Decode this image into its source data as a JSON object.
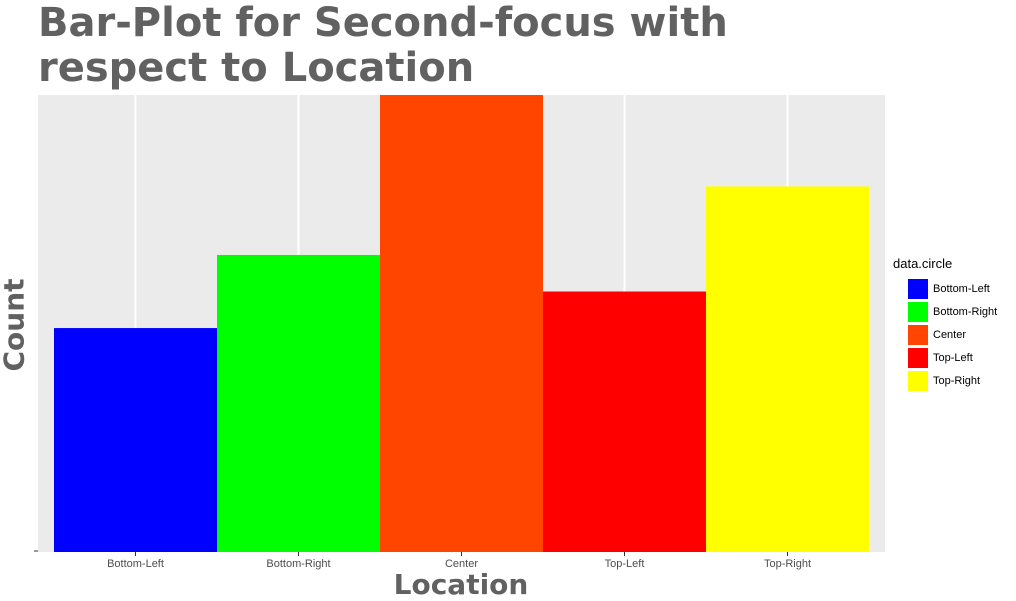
{
  "chart_data": {
    "type": "bar",
    "title": "Bar-Plot for Second-focus with respect to Location",
    "title_lines": [
      "Bar-Plot for Second-focus with",
      "respect to Location"
    ],
    "xlabel": "Location",
    "ylabel": "Count",
    "categories": [
      "Bottom-Left",
      "Bottom-Right",
      "Center",
      "Top-Left",
      "Top-Right"
    ],
    "values": [
      0.49,
      0.65,
      1.0,
      0.57,
      0.8
    ],
    "colors": [
      "#0000ff",
      "#00ff00",
      "#ff4500",
      "#ff0000",
      "#ffff00"
    ],
    "ylim": [
      0,
      1
    ],
    "grid": true,
    "legend": {
      "title": "data.circle",
      "placement": "right",
      "entries": [
        "Bottom-Left",
        "Bottom-Right",
        "Center",
        "Top-Left",
        "Top-Right"
      ]
    }
  }
}
